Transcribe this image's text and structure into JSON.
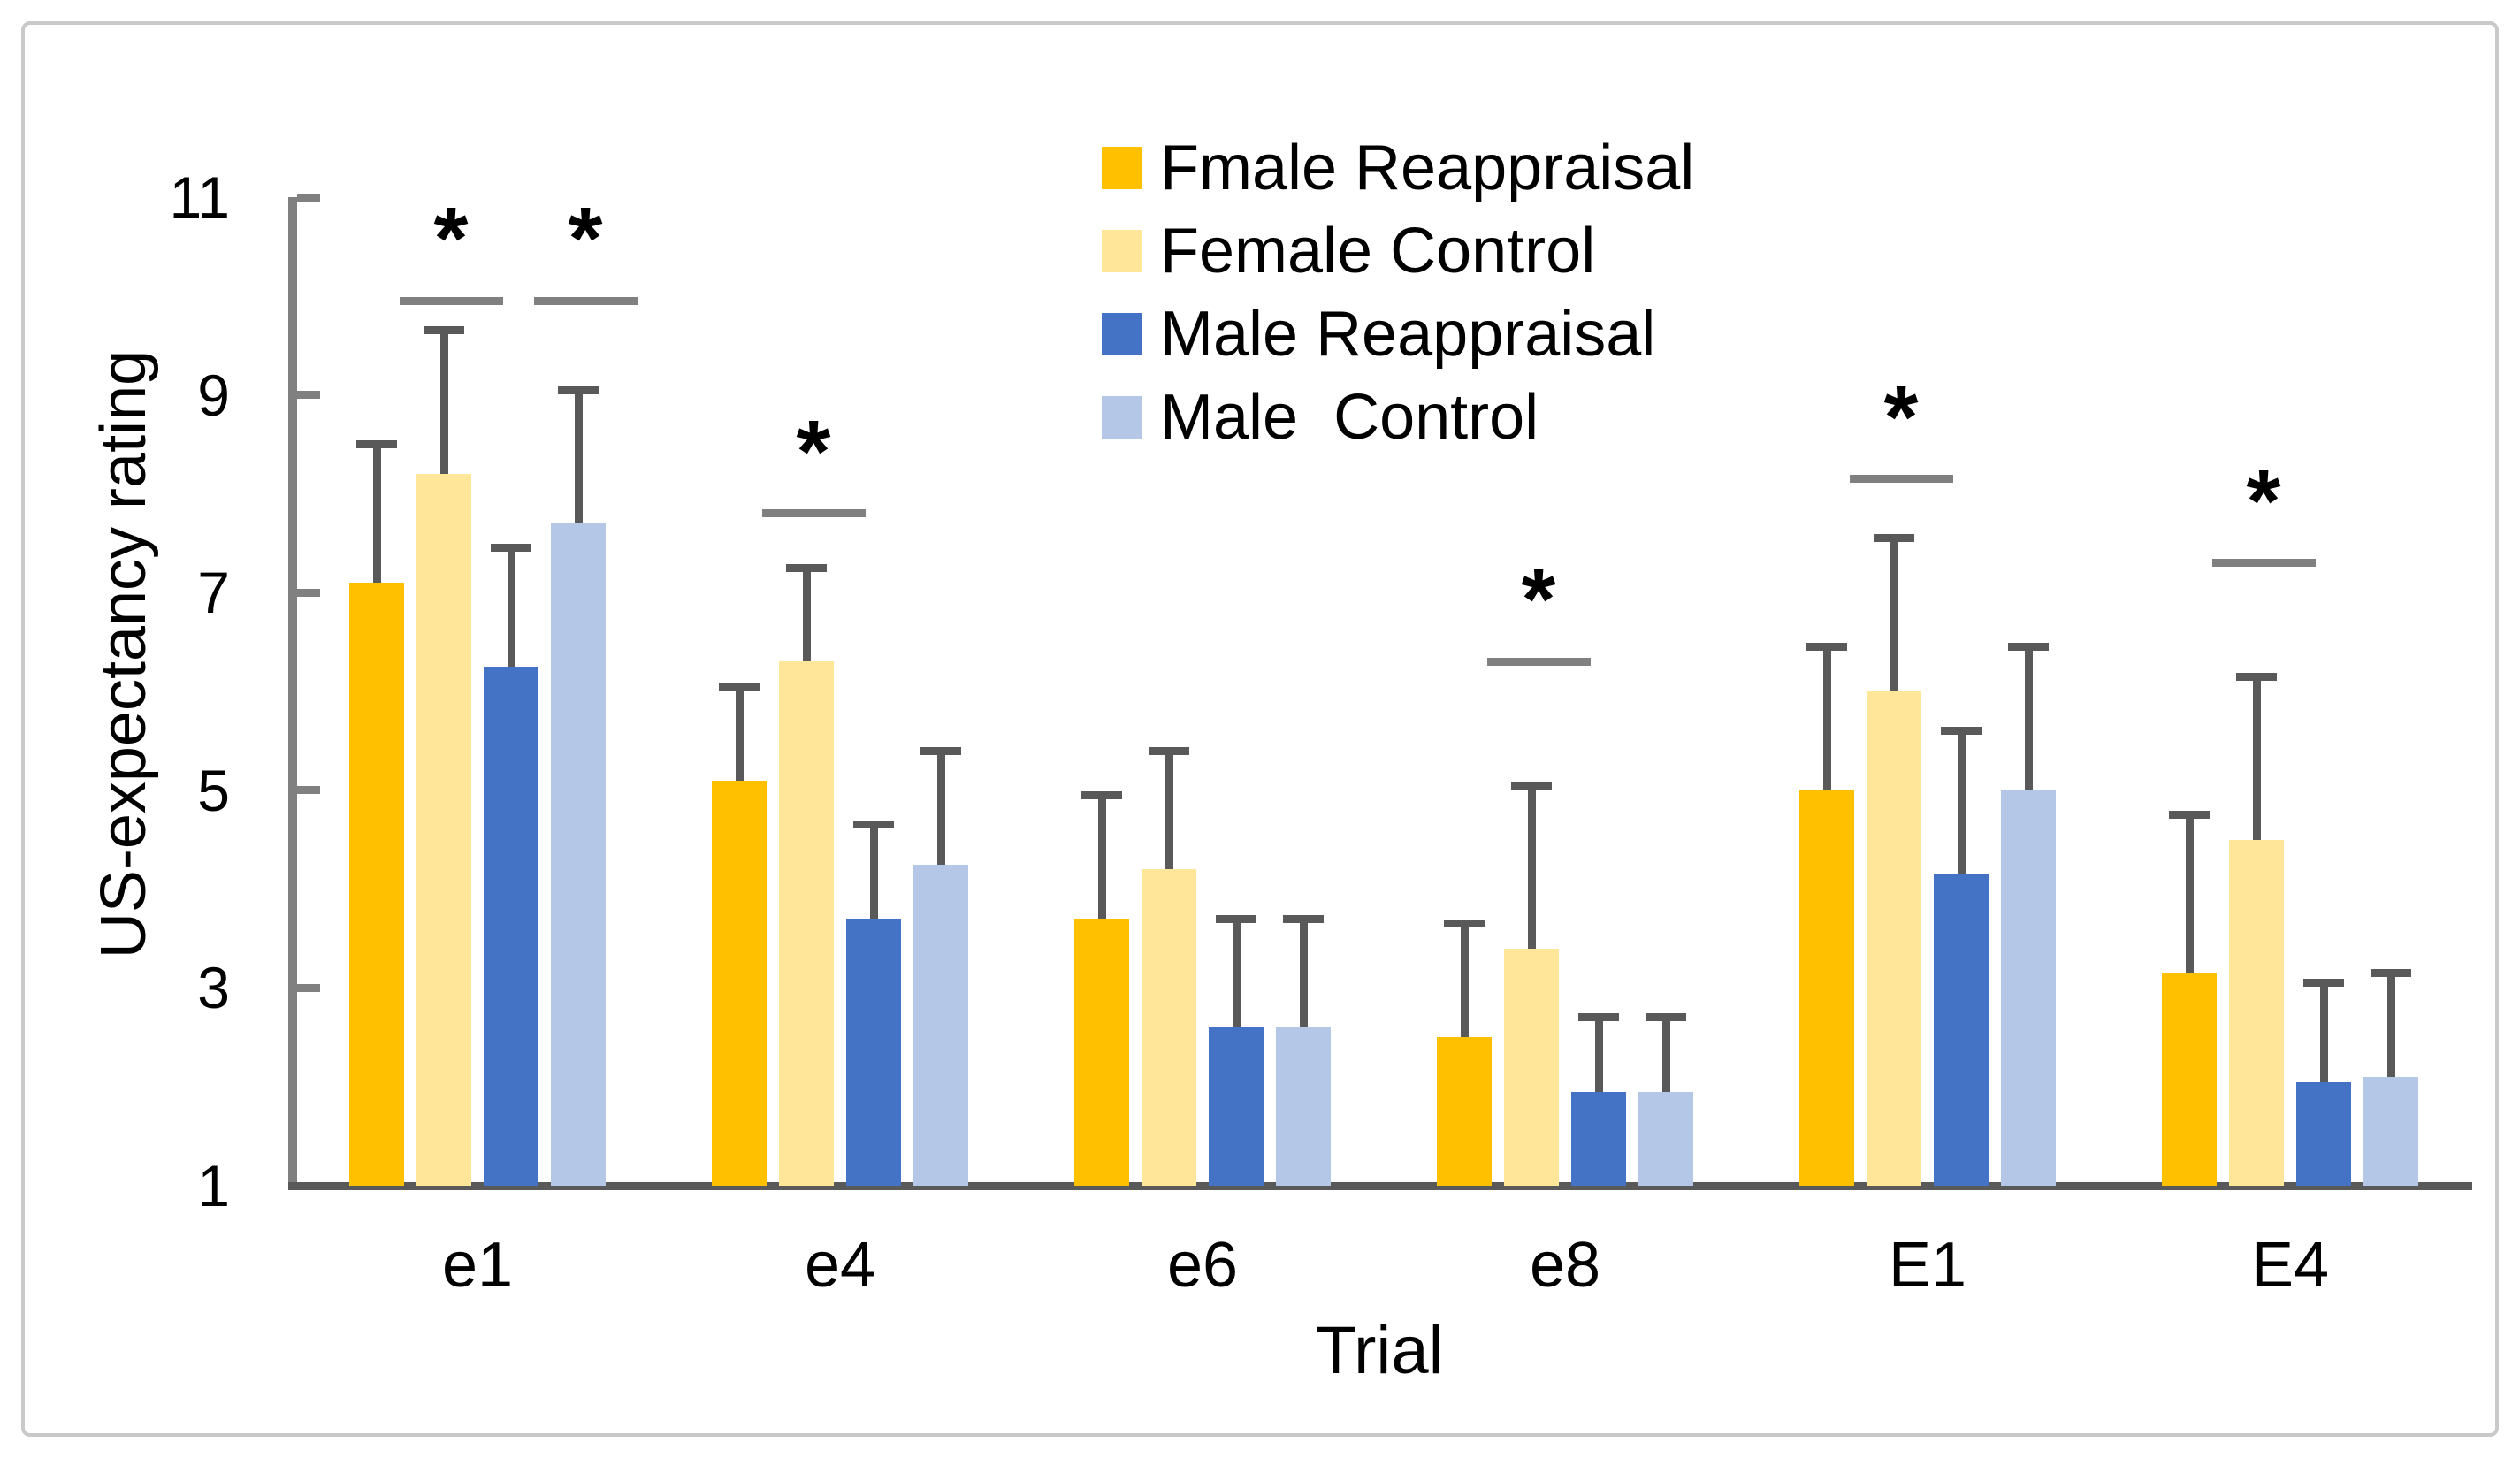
{
  "figure": {
    "background": "#ffffff",
    "border_color": "#c9c9c9"
  },
  "colors": {
    "axis": "#808080",
    "tick": "#808080",
    "baseline": "#595959",
    "error_bar": "#595959",
    "bracket": "#808080",
    "text": "#000000"
  },
  "chart_data": {
    "type": "bar",
    "title": "",
    "xlabel": "Trial",
    "ylabel": "US-expectancy rating",
    "categories": [
      "e1",
      "e4",
      "e6",
      "e8",
      "E1",
      "E4"
    ],
    "y_axis": {
      "min": 1,
      "max": 11,
      "tick_step": 2,
      "tick_values": [
        11,
        9,
        7,
        5,
        3,
        1
      ],
      "tick_labels": [
        "11",
        "9",
        "7",
        "5",
        "3",
        "1"
      ]
    },
    "grid": false,
    "legend_position": "top-center-inside",
    "series": [
      {
        "name": "Fmale Reappraisal",
        "color": "#FFC000",
        "values": [
          7.1,
          5.1,
          3.7,
          2.5,
          5.0,
          3.15
        ],
        "error_up": [
          1.4,
          0.95,
          1.25,
          1.15,
          1.45,
          1.6
        ]
      },
      {
        "name": "Female Control",
        "color": "#FFE699",
        "values": [
          8.2,
          6.3,
          4.2,
          3.4,
          6.0,
          4.5
        ],
        "error_up": [
          1.45,
          0.95,
          1.2,
          1.65,
          1.55,
          1.65
        ]
      },
      {
        "name": "Male Reappraisal",
        "color": "#4472C4",
        "values": [
          6.25,
          3.7,
          2.6,
          1.95,
          4.15,
          2.05
        ],
        "error_up": [
          1.2,
          0.95,
          1.1,
          0.75,
          1.45,
          1.0
        ]
      },
      {
        "name": "Male  Control",
        "color": "#B4C7E7",
        "values": [
          7.7,
          4.25,
          2.6,
          1.95,
          5.0,
          2.1
        ],
        "error_up": [
          1.35,
          1.15,
          1.1,
          0.75,
          1.45,
          1.05
        ]
      }
    ],
    "significance_markers": [
      {
        "label": "*",
        "category": "e1",
        "over_series_index": 1,
        "over_series_name": "Female Control",
        "line_value": 9.95
      },
      {
        "label": "*",
        "category": "e1",
        "over_series_index": 3,
        "over_series_name": "Male  Control",
        "line_value": 9.95
      },
      {
        "label": "*",
        "category": "e4",
        "over_series_index": 1,
        "over_series_name": "Female Control",
        "line_value": 7.8
      },
      {
        "label": "*",
        "category": "e8",
        "over_series_index": 1,
        "over_series_name": "Female Control",
        "line_value": 6.3
      },
      {
        "label": "*",
        "category": "E1",
        "over_series_index": 1,
        "over_series_name": "Female Control",
        "line_value": 8.15
      },
      {
        "label": "*",
        "category": "E4",
        "over_series_index": 1,
        "over_series_name": "Female Control",
        "line_value": 7.3
      }
    ]
  }
}
